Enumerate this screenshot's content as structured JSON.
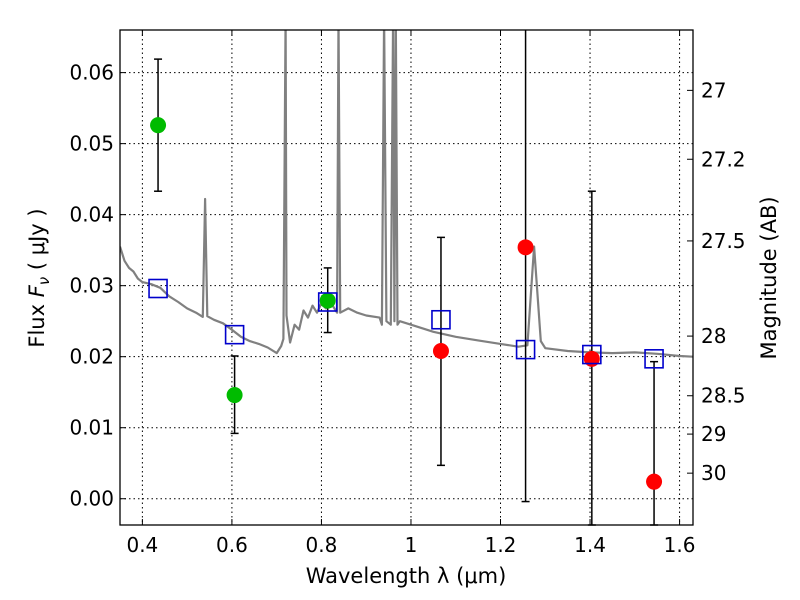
{
  "chart_data": {
    "type": "scatter",
    "title": "",
    "xlabel": "Wavelength  λ (μm)",
    "ylabel": "Flux  F_ν  ( μJy )",
    "ylabel_parts": {
      "prefix": "Flux  ",
      "symbol": "F",
      "subscript": "ν",
      "unit": "  ( μJy )"
    },
    "y2label": "Magnitude (AB)",
    "xlim": [
      0.35,
      1.63
    ],
    "ylim": [
      -0.0037,
      0.066
    ],
    "grid": true,
    "x_ticks": [
      0.4,
      0.6,
      0.8,
      1.0,
      1.2,
      1.4,
      1.6
    ],
    "x_tick_labels": [
      "0.4",
      "0.6",
      "0.8",
      "1",
      "1.2",
      "1.4",
      "1.6"
    ],
    "y_ticks": [
      0.0,
      0.01,
      0.02,
      0.03,
      0.04,
      0.05,
      0.06
    ],
    "y_tick_labels": [
      "0.00",
      "0.01",
      "0.02",
      "0.03",
      "0.04",
      "0.05",
      "0.06"
    ],
    "y2_ticks": [
      {
        "label": "27",
        "flux": 0.0575
      },
      {
        "label": "27.2",
        "flux": 0.0478
      },
      {
        "label": "27.5",
        "flux": 0.0363
      },
      {
        "label": "28",
        "flux": 0.0229
      },
      {
        "label": "28.5",
        "flux": 0.0145
      },
      {
        "label": "29",
        "flux": 0.0091
      },
      {
        "label": "30",
        "flux": 0.0036
      }
    ],
    "colors": {
      "detected": "#00bb00",
      "upper_limit": "#ff0000",
      "model_band": "#0000cc",
      "model_spectrum": "#808080",
      "error_bar": "#000000"
    },
    "series": [
      {
        "name": "observed_detected",
        "marker": "circle",
        "color": "#00bb00",
        "points": [
          {
            "x": 0.435,
            "y": 0.0526,
            "ylo": 0.0433,
            "yhi": 0.0619
          },
          {
            "x": 0.606,
            "y": 0.0146,
            "ylo": 0.0092,
            "yhi": 0.0201
          },
          {
            "x": 0.814,
            "y": 0.0279,
            "ylo": 0.0234,
            "yhi": 0.0325
          }
        ]
      },
      {
        "name": "observed_low_snr",
        "marker": "circle",
        "color": "#ff0000",
        "points": [
          {
            "x": 1.067,
            "y": 0.0208,
            "ylo": 0.0047,
            "yhi": 0.0368
          },
          {
            "x": 1.256,
            "y": 0.0354,
            "ylo": -0.0004,
            "yhi": 0.068
          },
          {
            "x": 1.404,
            "y": 0.0197,
            "ylo": -0.0037,
            "yhi": 0.0433
          },
          {
            "x": 1.543,
            "y": 0.0024,
            "ylo": -0.0037,
            "yhi": 0.0193
          }
        ]
      },
      {
        "name": "model_bandpass",
        "marker": "square",
        "color": "#0000cc",
        "points": [
          {
            "x": 0.435,
            "y": 0.0296
          },
          {
            "x": 0.606,
            "y": 0.0231
          },
          {
            "x": 0.814,
            "y": 0.0277
          },
          {
            "x": 1.067,
            "y": 0.0252
          },
          {
            "x": 1.256,
            "y": 0.021
          },
          {
            "x": 1.404,
            "y": 0.0203
          },
          {
            "x": 1.543,
            "y": 0.0197
          }
        ]
      },
      {
        "name": "model_spectrum",
        "type": "line",
        "color": "#808080",
        "points": [
          [
            0.35,
            0.0355
          ],
          [
            0.36,
            0.0335
          ],
          [
            0.37,
            0.0325
          ],
          [
            0.38,
            0.032
          ],
          [
            0.39,
            0.031
          ],
          [
            0.4,
            0.0305
          ],
          [
            0.42,
            0.0302
          ],
          [
            0.44,
            0.0297
          ],
          [
            0.46,
            0.0285
          ],
          [
            0.48,
            0.0277
          ],
          [
            0.5,
            0.0268
          ],
          [
            0.52,
            0.0262
          ],
          [
            0.535,
            0.0256
          ],
          [
            0.54,
            0.0422
          ],
          [
            0.545,
            0.0257
          ],
          [
            0.56,
            0.0252
          ],
          [
            0.58,
            0.0247
          ],
          [
            0.6,
            0.0238
          ],
          [
            0.62,
            0.0228
          ],
          [
            0.64,
            0.0222
          ],
          [
            0.66,
            0.0218
          ],
          [
            0.68,
            0.0213
          ],
          [
            0.7,
            0.0205
          ],
          [
            0.71,
            0.0215
          ],
          [
            0.715,
            0.0225
          ],
          [
            0.72,
            0.068
          ],
          [
            0.722,
            0.0258
          ],
          [
            0.73,
            0.022
          ],
          [
            0.74,
            0.0245
          ],
          [
            0.75,
            0.0238
          ],
          [
            0.76,
            0.0265
          ],
          [
            0.77,
            0.0255
          ],
          [
            0.78,
            0.0272
          ],
          [
            0.79,
            0.0262
          ],
          [
            0.8,
            0.0275
          ],
          [
            0.81,
            0.0268
          ],
          [
            0.825,
            0.0272
          ],
          [
            0.835,
            0.0262
          ],
          [
            0.838,
            0.068
          ],
          [
            0.842,
            0.0262
          ],
          [
            0.86,
            0.0268
          ],
          [
            0.88,
            0.0262
          ],
          [
            0.9,
            0.0258
          ],
          [
            0.93,
            0.0255
          ],
          [
            0.935,
            0.0245
          ],
          [
            0.94,
            0.068
          ],
          [
            0.945,
            0.025
          ],
          [
            0.955,
            0.0245
          ],
          [
            0.96,
            0.068
          ],
          [
            0.963,
            0.025
          ],
          [
            0.966,
            0.068
          ],
          [
            0.97,
            0.0245
          ],
          [
            0.975,
            0.025
          ],
          [
            1.0,
            0.0245
          ],
          [
            1.05,
            0.0235
          ],
          [
            1.1,
            0.0228
          ],
          [
            1.15,
            0.0223
          ],
          [
            1.2,
            0.0218
          ],
          [
            1.24,
            0.0214
          ],
          [
            1.26,
            0.0216
          ],
          [
            1.275,
            0.0355
          ],
          [
            1.29,
            0.0222
          ],
          [
            1.3,
            0.0212
          ],
          [
            1.35,
            0.0208
          ],
          [
            1.4,
            0.0206
          ],
          [
            1.45,
            0.0205
          ],
          [
            1.5,
            0.0206
          ],
          [
            1.55,
            0.0204
          ],
          [
            1.6,
            0.0201
          ],
          [
            1.63,
            0.02
          ]
        ]
      }
    ]
  }
}
